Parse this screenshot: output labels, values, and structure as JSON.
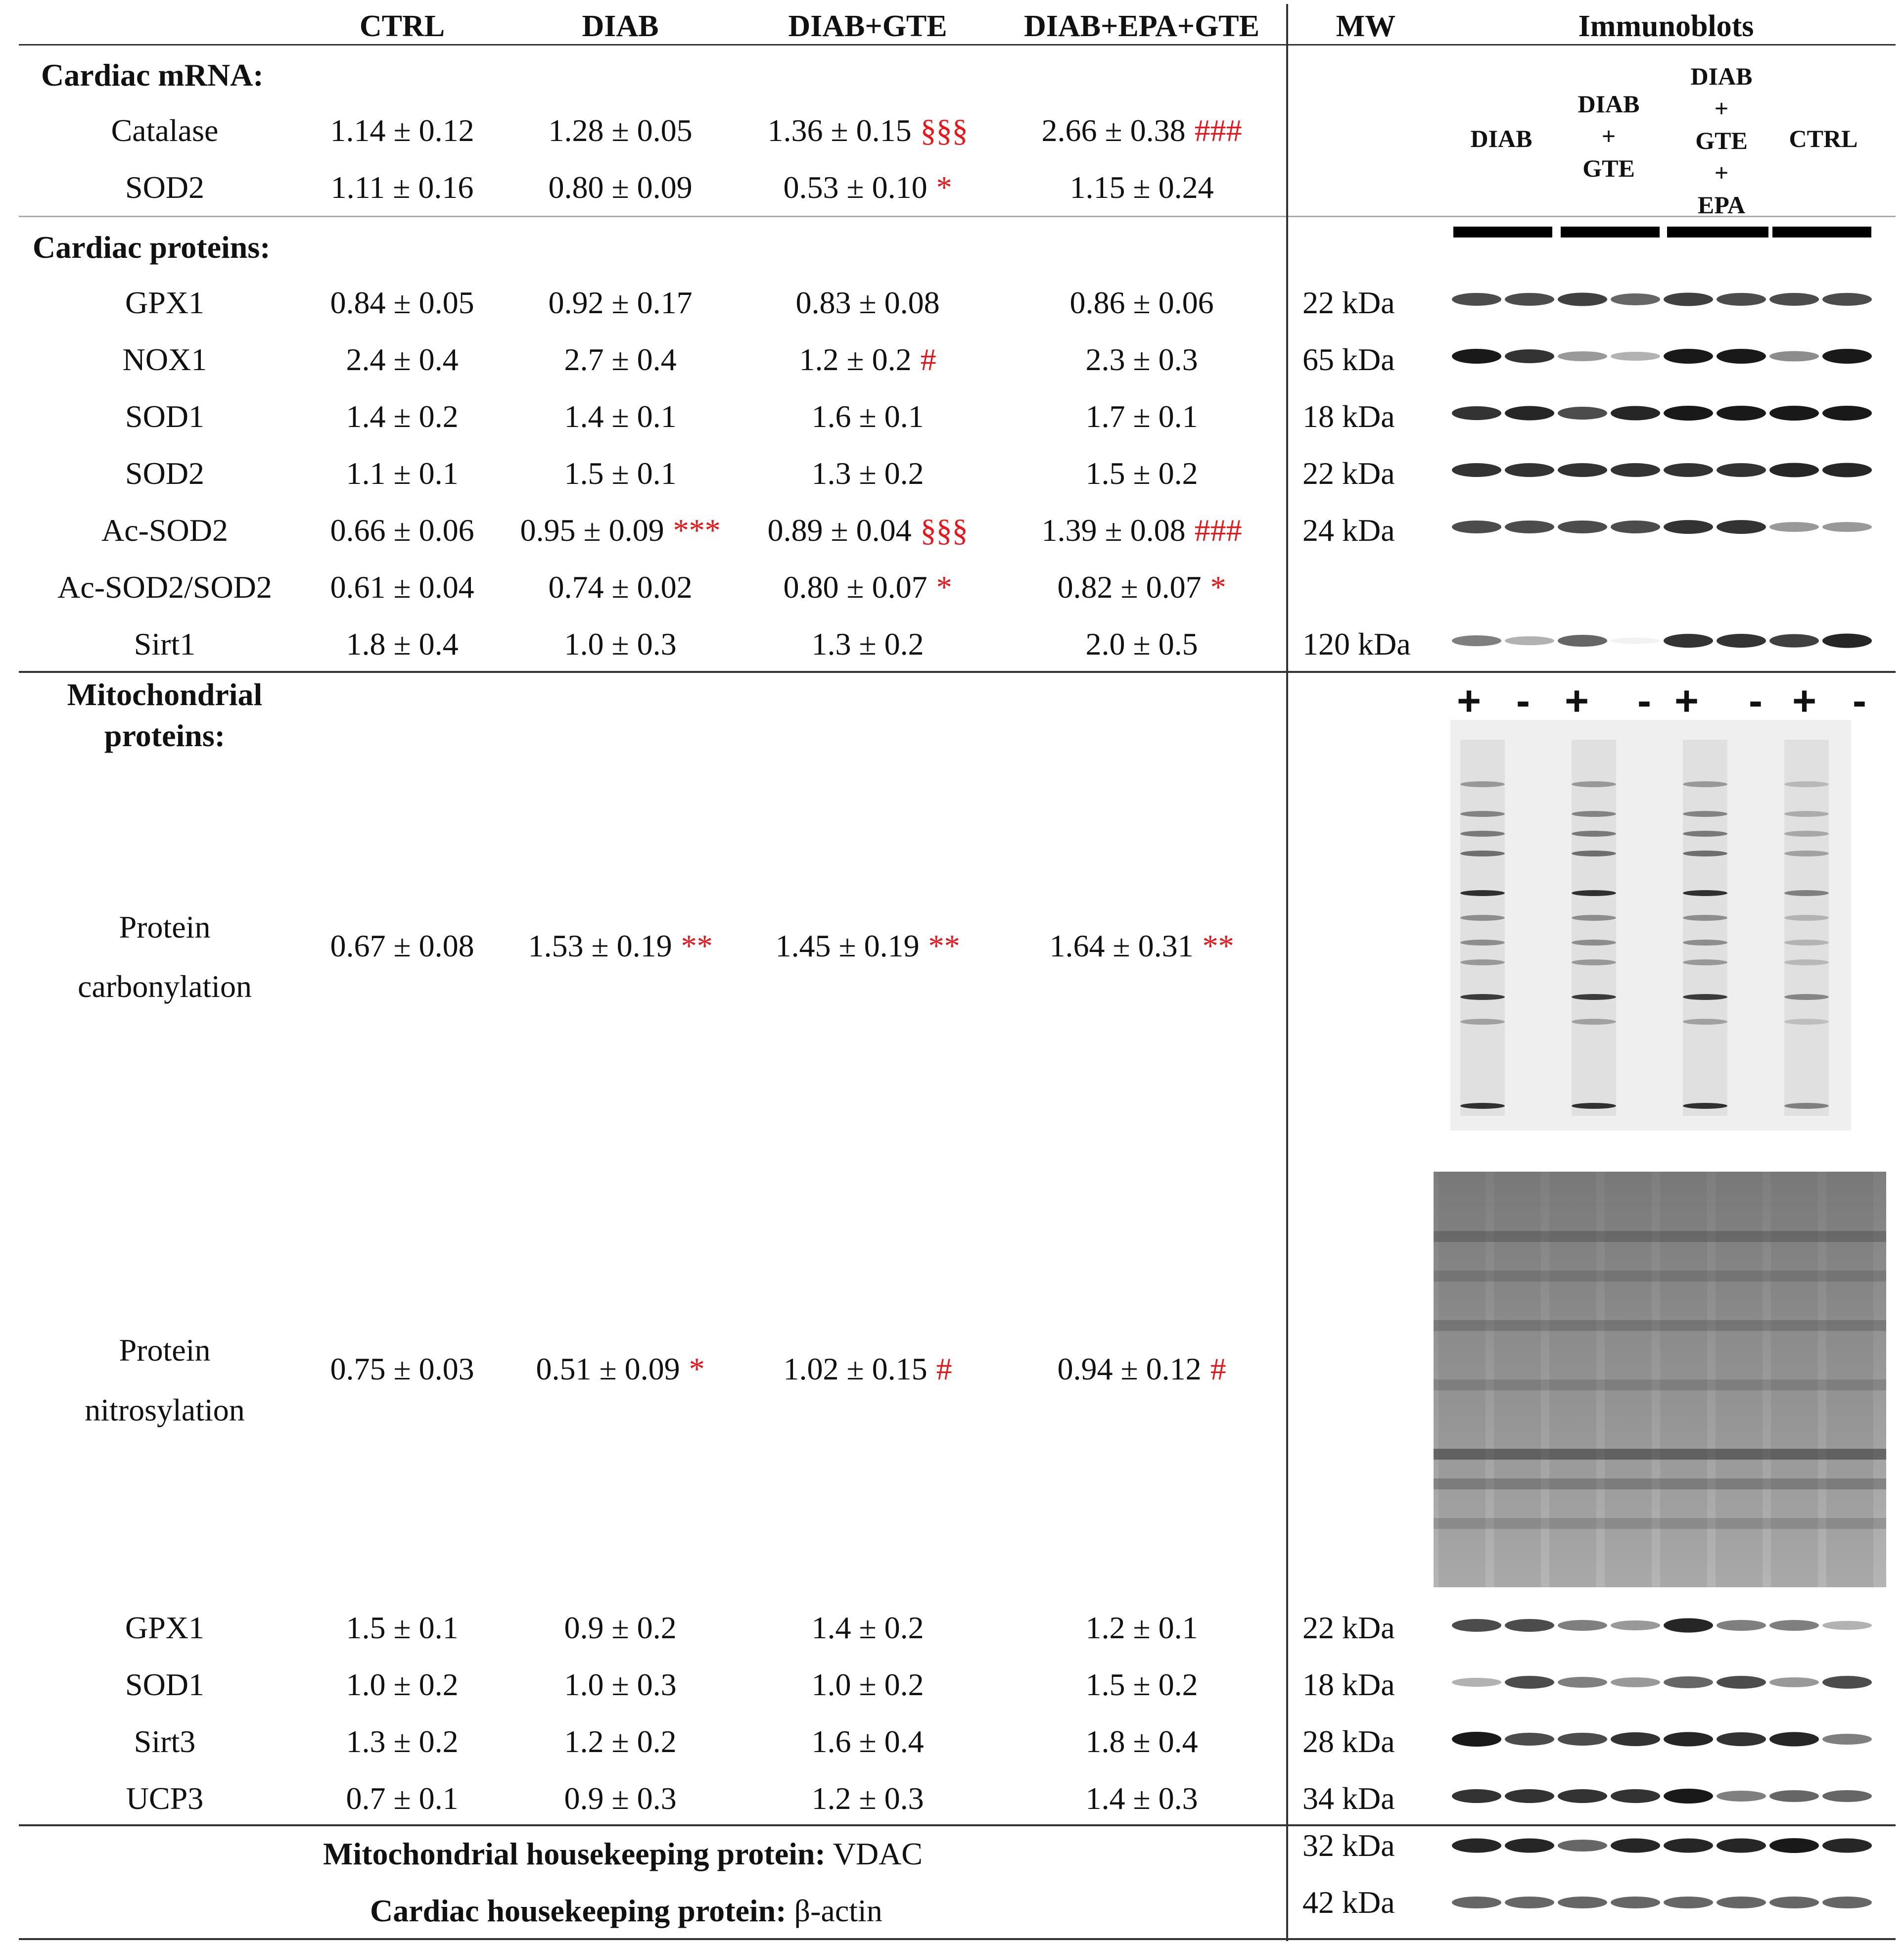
{
  "headers": {
    "ctrl": "CTRL",
    "diab": "DIAB",
    "diab_gte": "DIAB+GTE",
    "diab_epa_gte": "DIAB+EPA+GTE",
    "mw": "MW",
    "immunoblots": "Immunoblots"
  },
  "lanes": {
    "l1": "DIAB",
    "l2a": "DIAB",
    "l2b": "+",
    "l2c": "GTE",
    "l3a": "DIAB",
    "l3b": "+",
    "l3c": "GTE",
    "l3d": "+",
    "l3e": "EPA",
    "l4": "CTRL"
  },
  "sections": {
    "mrna": "Cardiac mRNA:",
    "proteins": "Cardiac proteins:",
    "mito1": "Mitochondrial",
    "mito2": "proteins:"
  },
  "rows": [
    {
      "name": "Catalase",
      "ctrl": "1.14 ± 0.12",
      "diab": "1.28 ± 0.05",
      "diab_sig": "",
      "gte": "1.36 ± 0.15",
      "gte_sig": "§§§",
      "epa": "2.66 ± 0.38",
      "epa_sig": "###",
      "mw": ""
    },
    {
      "name": "SOD2",
      "ctrl": "1.11 ± 0.16",
      "diab": "0.80 ± 0.09",
      "diab_sig": "",
      "gte": "0.53 ± 0.10",
      "gte_sig": "*",
      "epa": "1.15 ± 0.24",
      "epa_sig": "",
      "mw": ""
    },
    {
      "name": "GPX1",
      "ctrl": "0.84 ± 0.05",
      "diab": "0.92 ± 0.17",
      "diab_sig": "",
      "gte": "0.83 ± 0.08",
      "gte_sig": "",
      "epa": "0.86 ± 0.06",
      "epa_sig": "",
      "mw": "22 kDa"
    },
    {
      "name": "NOX1",
      "ctrl": "2.4 ± 0.4",
      "diab": "2.7 ± 0.4",
      "diab_sig": "",
      "gte": "1.2 ± 0.2",
      "gte_sig": "#",
      "epa": "2.3 ± 0.3",
      "epa_sig": "",
      "mw": "65 kDa"
    },
    {
      "name": "SOD1",
      "ctrl": "1.4 ± 0.2",
      "diab": "1.4 ± 0.1",
      "diab_sig": "",
      "gte": "1.6 ± 0.1",
      "gte_sig": "",
      "epa": "1.7 ± 0.1",
      "epa_sig": "",
      "mw": "18 kDa"
    },
    {
      "name": "SOD2",
      "ctrl": "1.1 ± 0.1",
      "diab": "1.5 ± 0.1",
      "diab_sig": "",
      "gte": "1.3 ± 0.2",
      "gte_sig": "",
      "epa": "1.5 ± 0.2",
      "epa_sig": "",
      "mw": "22 kDa"
    },
    {
      "name": "Ac-SOD2",
      "ctrl": "0.66 ± 0.06",
      "diab": "0.95 ± 0.09",
      "diab_sig": "***",
      "gte": "0.89 ± 0.04",
      "gte_sig": "§§§",
      "epa": "1.39 ± 0.08",
      "epa_sig": "###",
      "mw": "24 kDa"
    },
    {
      "name": "Ac-SOD2/SOD2",
      "ctrl": "0.61 ± 0.04",
      "diab": "0.74 ± 0.02",
      "diab_sig": "",
      "gte": "0.80 ± 0.07",
      "gte_sig": "*",
      "epa": "0.82 ± 0.07",
      "epa_sig": "*",
      "mw": ""
    },
    {
      "name": "Sirt1",
      "ctrl": "1.8 ± 0.4",
      "diab": "1.0 ± 0.3",
      "diab_sig": "",
      "gte": "1.3 ± 0.2",
      "gte_sig": "",
      "epa": "2.0 ± 0.5",
      "epa_sig": "",
      "mw": "120 kDa"
    },
    {
      "name": "Protein",
      "name2": "carbonylation",
      "ctrl": "0.67 ± 0.08",
      "diab": "1.53 ± 0.19",
      "diab_sig": "**",
      "gte": "1.45 ± 0.19",
      "gte_sig": "**",
      "epa": "1.64 ± 0.31",
      "epa_sig": "**",
      "mw": ""
    },
    {
      "name": "Protein",
      "name2": "nitrosylation",
      "ctrl": "0.75 ± 0.03",
      "diab": "0.51 ± 0.09",
      "diab_sig": "*",
      "gte": "1.02 ± 0.15",
      "gte_sig": "#",
      "epa": "0.94 ± 0.12",
      "epa_sig": "#",
      "mw": ""
    },
    {
      "name": "GPX1",
      "ctrl": "1.5 ± 0.1",
      "diab": "0.9 ± 0.2",
      "diab_sig": "",
      "gte": "1.4 ± 0.2",
      "gte_sig": "",
      "epa": "1.2 ± 0.1",
      "epa_sig": "",
      "mw": "22 kDa"
    },
    {
      "name": "SOD1",
      "ctrl": "1.0 ± 0.2",
      "diab": "1.0 ± 0.3",
      "diab_sig": "",
      "gte": "1.0 ± 0.2",
      "gte_sig": "",
      "epa": "1.5 ± 0.2",
      "epa_sig": "",
      "mw": "18 kDa"
    },
    {
      "name": "Sirt3",
      "ctrl": "1.3 ± 0.2",
      "diab": "1.2 ± 0.2",
      "diab_sig": "",
      "gte": "1.6 ± 0.4",
      "gte_sig": "",
      "epa": "1.8 ± 0.4",
      "epa_sig": "",
      "mw": "28 kDa"
    },
    {
      "name": "UCP3",
      "ctrl": "0.7 ± 0.1",
      "diab": "0.9 ± 0.3",
      "diab_sig": "",
      "gte": "1.2 ± 0.3",
      "gte_sig": "",
      "epa": "1.4 ± 0.3",
      "epa_sig": "",
      "mw": "34 kDa"
    }
  ],
  "housekeeping": {
    "vdac_label": "Mitochondrial housekeeping protein:",
    "vdac_name": "VDAC",
    "vdac_mw": "32 kDa",
    "actin_label": "Cardiac housekeeping protein:",
    "actin_name": "β-actin",
    "actin_mw": "42 kDa"
  },
  "plus_minus": [
    "+",
    "-",
    "+",
    "-",
    "+",
    "-",
    "+",
    "-"
  ]
}
